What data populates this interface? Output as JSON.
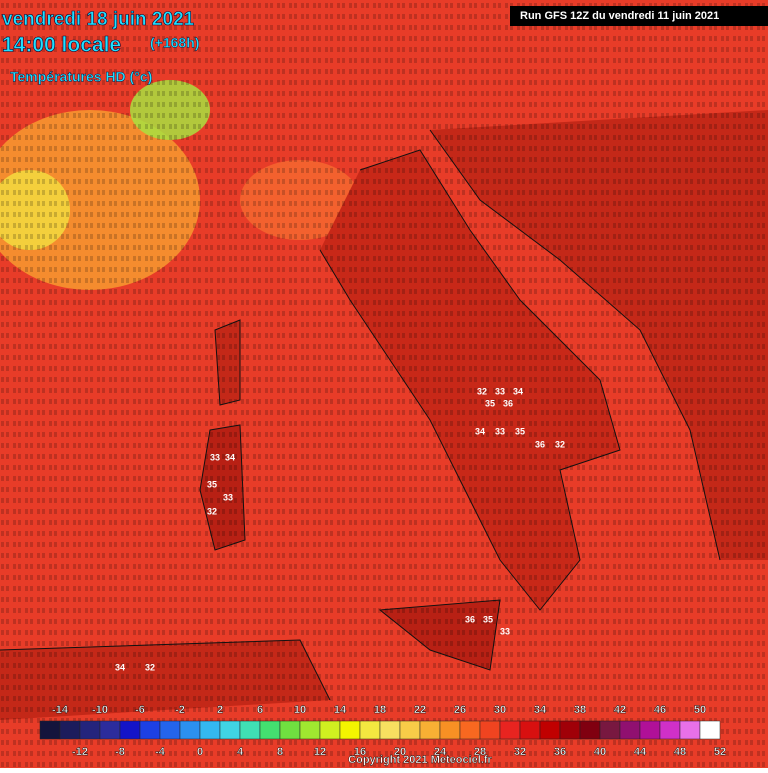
{
  "header": {
    "date": "vendredi 18 juin 2021",
    "time": "14:00 locale",
    "lead": "(+168h)",
    "subtitle": "Températures HD (°c)",
    "run": "Run GFS 12Z du vendredi 11 juin 2021"
  },
  "scale": {
    "ticks": [
      -14,
      -12,
      -10,
      -8,
      -6,
      -4,
      -2,
      0,
      2,
      4,
      6,
      8,
      10,
      12,
      14,
      16,
      18,
      20,
      22,
      24,
      26,
      28,
      30,
      32,
      34,
      36,
      38,
      40,
      42,
      44,
      46,
      48,
      50,
      52
    ],
    "colors": [
      "#14143c",
      "#1c1c5c",
      "#24247c",
      "#2c2c9c",
      "#1414c8",
      "#1c40e4",
      "#2464ec",
      "#2c90f0",
      "#34b8f0",
      "#40d4e4",
      "#40e0b4",
      "#44e070",
      "#70e040",
      "#a0e830",
      "#d0f020",
      "#f4f400",
      "#f4e840",
      "#f8e060",
      "#f8cc48",
      "#f8b034",
      "#f89024",
      "#f86820",
      "#f04420",
      "#e82420",
      "#d81010",
      "#c00000",
      "#a00008",
      "#800010",
      "#781840",
      "#901070",
      "#b01098",
      "#d030c8",
      "#e870e8",
      "#ffffff"
    ]
  },
  "readings": [
    32,
    33,
    34,
    35,
    36,
    34,
    33,
    35,
    36,
    32,
    33,
    34,
    35,
    33,
    32,
    36,
    35,
    33,
    34,
    32
  ],
  "footer": {
    "copyright": "Copyright 2021 Meteociel.fr"
  }
}
